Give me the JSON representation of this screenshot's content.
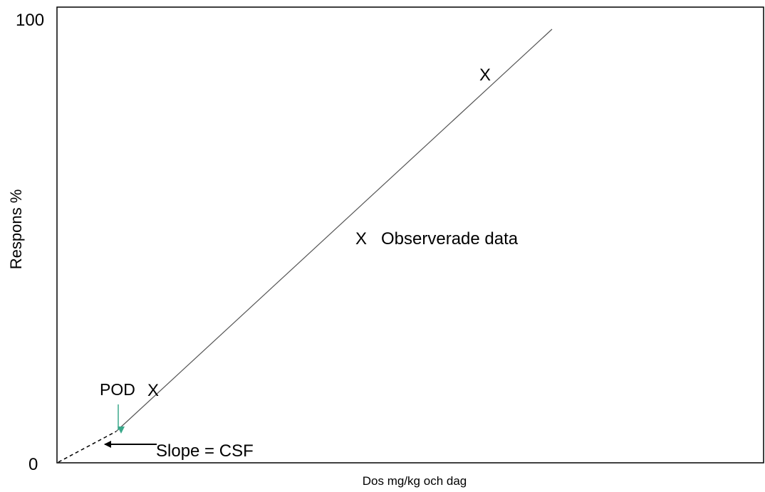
{
  "diagram": {
    "y_axis_label": "Respons %",
    "x_axis_label": "Dos mg/kg och dag",
    "y_tick_top": "100",
    "y_tick_bottom": "0",
    "marker_symbol": "X",
    "legend_label": "Observerade data",
    "pod_label": "POD",
    "slope_label": "Slope = CSF",
    "colors": {
      "line": "#555555",
      "axis": "#000000",
      "pod_arrow": "#3aa88a"
    }
  }
}
